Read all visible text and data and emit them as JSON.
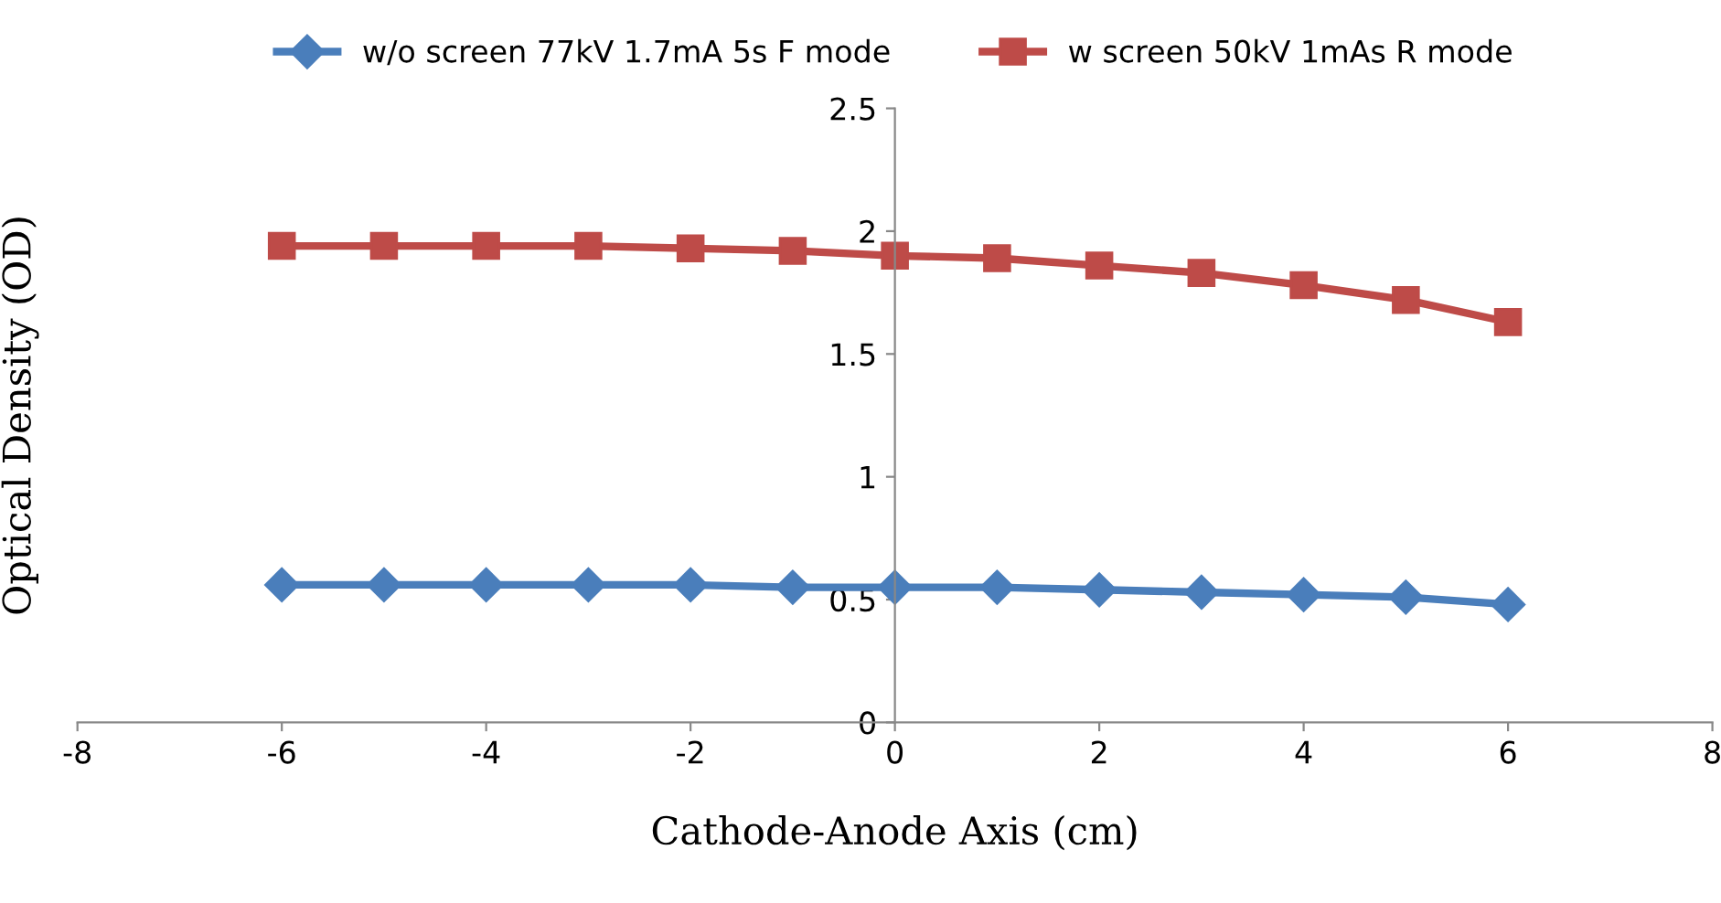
{
  "chart_data": {
    "type": "line",
    "xlabel": "Cathode-Anode Axis (cm)",
    "ylabel": "Optical Density (OD)",
    "x": [
      -6,
      -5,
      -4,
      -3,
      -2,
      -1,
      0,
      1,
      2,
      3,
      4,
      5,
      6
    ],
    "series": [
      {
        "name": "w/o screen 77kV 1.7mA 5s F mode",
        "color": "#4a7ebb",
        "marker": "diamond",
        "values": [
          0.56,
          0.56,
          0.56,
          0.56,
          0.56,
          0.55,
          0.55,
          0.55,
          0.54,
          0.53,
          0.52,
          0.51,
          0.48
        ]
      },
      {
        "name": "w screen 50kV 1mAs R mode",
        "color": "#be4b48",
        "marker": "square",
        "values": [
          1.94,
          1.94,
          1.94,
          1.94,
          1.93,
          1.92,
          1.9,
          1.89,
          1.86,
          1.83,
          1.78,
          1.72,
          1.63
        ]
      }
    ],
    "xlim": [
      -8,
      8
    ],
    "xticks": [
      -8,
      -6,
      -4,
      -2,
      0,
      2,
      4,
      6,
      8
    ],
    "ylim": [
      0,
      2.5
    ],
    "yticks": [
      0,
      0.5,
      1,
      1.5,
      2,
      2.5
    ],
    "grid": false,
    "legend": "top",
    "line_style": "solid"
  }
}
